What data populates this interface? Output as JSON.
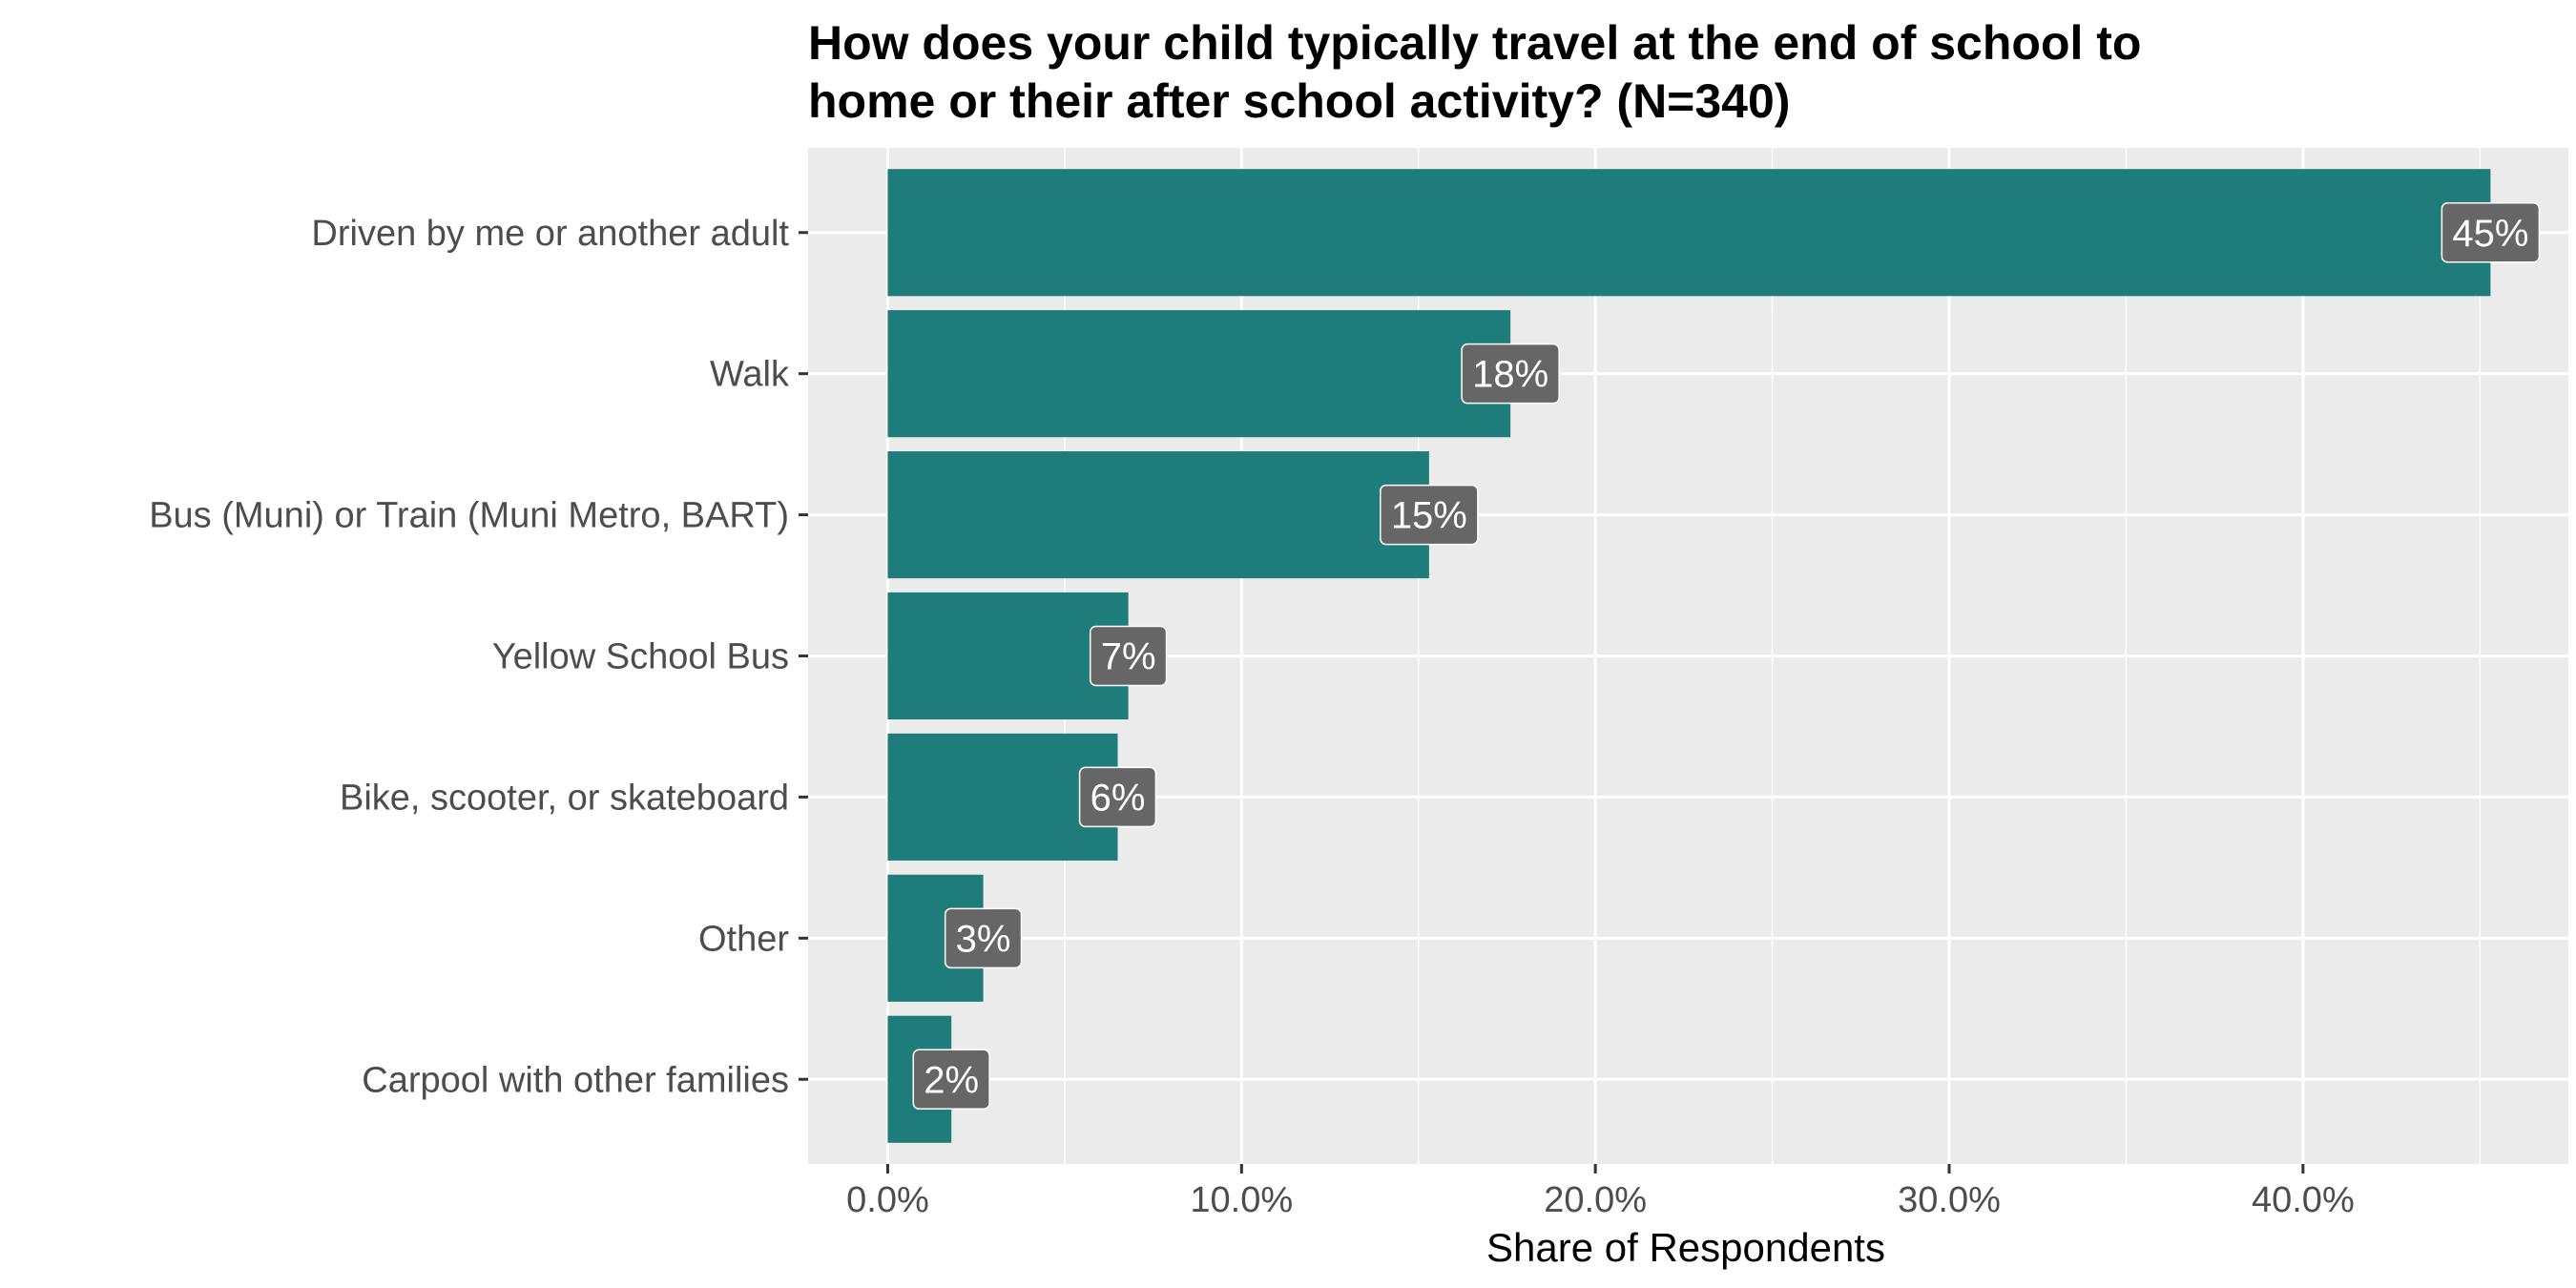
{
  "chart_data": {
    "type": "bar",
    "orientation": "horizontal",
    "title": "How does your child typically travel at the end of school to home or their after school activity? (N=340)",
    "title_lines": [
      "How does your child typically travel at the end of school to",
      "home or their after school activity? (N=340)"
    ],
    "xlabel": "Share of Respondents",
    "ylabel": "",
    "categories": [
      "Driven by me or another adult",
      "Walk",
      "Bus (Muni) or Train (Muni Metro, BART)",
      "Yellow School Bus",
      "Bike, scooter, or skateboard",
      "Other",
      "Carpool with other families"
    ],
    "values": [
      45.3,
      17.6,
      15.3,
      6.8,
      6.5,
      2.7,
      1.8
    ],
    "data_labels": [
      "45%",
      "18%",
      "15%",
      "7%",
      "6%",
      "3%",
      "2%"
    ],
    "x_ticks": [
      0,
      10,
      20,
      30,
      40
    ],
    "x_tick_labels": [
      "0.0%",
      "10.0%",
      "20.0%",
      "30.0%",
      "40.0%"
    ],
    "xlim": [
      -2.25,
      47.5
    ],
    "grid": true,
    "legend": "none",
    "colors": {
      "bar": "#1a7a77",
      "panel": "#ebebeb",
      "grid": "#ffffff",
      "label_box": "#666666"
    }
  }
}
